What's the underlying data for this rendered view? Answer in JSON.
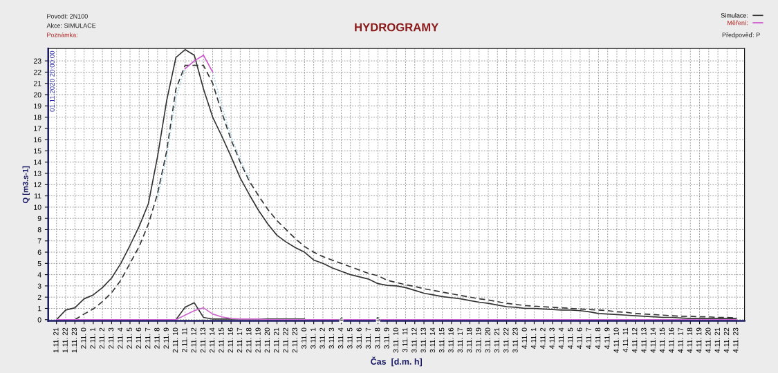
{
  "chart_data": {
    "type": "line",
    "title": "HYDROGRAMY",
    "xlabel": "Čas  [d.m. h]",
    "ylabel": "Q [m3.s-1]",
    "categories": [
      "1.11. 21",
      "1.11. 22",
      "1.11. 23",
      "2.11. 0",
      "2.11. 1",
      "2.11. 2",
      "2.11. 3",
      "2.11. 4",
      "2.11. 5",
      "2.11. 6",
      "2.11. 7",
      "2.11. 8",
      "2.11. 9",
      "2.11. 10",
      "2.11. 11",
      "2.11. 12",
      "2.11. 13",
      "2.11. 14",
      "2.11. 15",
      "2.11. 16",
      "2.11. 17",
      "2.11. 18",
      "2.11. 19",
      "2.11. 20",
      "2.11. 21",
      "2.11. 22",
      "2.11. 23",
      "3.11. 0",
      "3.11. 1",
      "3.11. 2",
      "3.11. 3",
      "3.11. 4",
      "3.11. 5",
      "3.11. 6",
      "3.11. 7",
      "3.11. 8",
      "3.11. 9",
      "3.11. 10",
      "3.11. 11",
      "3.11. 12",
      "3.11. 13",
      "3.11. 14",
      "3.11. 15",
      "3.11. 16",
      "3.11. 17",
      "3.11. 18",
      "3.11. 19",
      "3.11. 20",
      "3.11. 21",
      "3.11. 22",
      "3.11. 23",
      "4.11. 0",
      "4.11. 1",
      "4.11. 2",
      "4.11. 3",
      "4.11. 4",
      "4.11. 5",
      "4.11. 6",
      "4.11. 7",
      "4.11. 8",
      "4.11. 9",
      "4.11. 10",
      "4.11. 11",
      "4.11. 12",
      "4.11. 13",
      "4.11. 14",
      "4.11. 15",
      "4.11. 16",
      "4.11. 17",
      "4.11. 18",
      "4.11. 19",
      "4.11. 20",
      "4.11. 21",
      "4.11. 22",
      "4.11. 23"
    ],
    "series": [
      {
        "name": "Simulace:",
        "color": "#333333",
        "line_style": "solid",
        "values": [
          0,
          0.85,
          1.05,
          1.85,
          2.2,
          2.85,
          3.7,
          5.0,
          6.6,
          8.3,
          10.3,
          14.5,
          19.5,
          23.3,
          24.0,
          23.5,
          20.5,
          18.0,
          16.3,
          14.5,
          12.6,
          11.1,
          9.7,
          8.5,
          7.5,
          6.9,
          6.4,
          6.0,
          5.3,
          5.0,
          4.6,
          4.3,
          4.0,
          3.8,
          3.6,
          3.2,
          3.05,
          3.0,
          2.85,
          2.6,
          2.35,
          2.2,
          2.05,
          1.95,
          1.85,
          1.7,
          1.55,
          1.45,
          1.3,
          1.15,
          1.1,
          1.0,
          1.0,
          0.95,
          0.9,
          0.85,
          0.85,
          0.8,
          0.7,
          0.55,
          0.5,
          0.45,
          0.4,
          0.35,
          0.3,
          0.25,
          0.2,
          0.2,
          0.15,
          0.1,
          0.1,
          0.1,
          0.1,
          0.1,
          0.1
        ]
      },
      {
        "color": "#333333",
        "line_style": "dashed",
        "values": [
          null,
          null,
          0,
          0.5,
          0.95,
          1.6,
          2.4,
          3.5,
          5.0,
          6.5,
          8.5,
          11.2,
          15.0,
          20.5,
          22.6,
          22.6,
          22.6,
          21.0,
          18.4,
          16.0,
          14.0,
          12.3,
          11.0,
          9.8,
          8.8,
          8.0,
          7.2,
          6.5,
          6.0,
          5.6,
          5.3,
          5.0,
          4.7,
          4.4,
          4.1,
          3.9,
          3.5,
          3.3,
          3.1,
          2.95,
          2.75,
          2.6,
          2.45,
          2.3,
          2.15,
          2.0,
          1.85,
          1.75,
          1.6,
          1.45,
          1.35,
          1.25,
          1.2,
          1.15,
          1.1,
          1.05,
          1.0,
          0.95,
          0.9,
          0.85,
          0.8,
          0.7,
          0.65,
          0.55,
          0.5,
          0.45,
          0.4,
          0.35,
          0.3,
          0.3,
          0.25,
          0.25,
          0.2,
          0.2,
          0.15
        ]
      },
      {
        "color": "#9fd3e6",
        "line_style": "dotted",
        "values": [
          null,
          null,
          null,
          null,
          null,
          null,
          null,
          null,
          null,
          null,
          null,
          10.8,
          14.5,
          19.8,
          22.3,
          null,
          null,
          22.0,
          19.0,
          16.3,
          14.2,
          12.5,
          null,
          null,
          null,
          null,
          null,
          null,
          null,
          null,
          null,
          null,
          null,
          null,
          null,
          null,
          null,
          null,
          null,
          null,
          null,
          null,
          null,
          null,
          null,
          null,
          null,
          null,
          null,
          null,
          null,
          null,
          null,
          null,
          null,
          null,
          null,
          null,
          null,
          null,
          null,
          null,
          null,
          null,
          null,
          null,
          null,
          null,
          null,
          null,
          null,
          null,
          null,
          null,
          null
        ]
      },
      {
        "name": "Měření:",
        "color": "#cc55cc",
        "line_style": "solid",
        "values": [
          null,
          null,
          null,
          null,
          null,
          null,
          null,
          null,
          null,
          null,
          null,
          null,
          null,
          null,
          22.3,
          23.0,
          23.5,
          22.0,
          null,
          null,
          null,
          null,
          null,
          null,
          null,
          null,
          null,
          null,
          null,
          null,
          null,
          null,
          null,
          null,
          null,
          null,
          null,
          null,
          null,
          null,
          null,
          null,
          null,
          null,
          null,
          null,
          null,
          null,
          null,
          null,
          null,
          null,
          null,
          null,
          null,
          null,
          null,
          null,
          null,
          null,
          null,
          null,
          null,
          null,
          null,
          null,
          null,
          null,
          null,
          null,
          null,
          null,
          null,
          null,
          null
        ]
      },
      {
        "color": "#333333",
        "line_style": "solid",
        "values": [
          null,
          null,
          null,
          null,
          null,
          null,
          null,
          null,
          null,
          null,
          null,
          null,
          null,
          0,
          1.1,
          1.5,
          0.2,
          0.05,
          0.05,
          0.05,
          0.05,
          0.05,
          0.05,
          0.05,
          0.05,
          0.05,
          0.05,
          0.05,
          null,
          null,
          null,
          null,
          null,
          null,
          null,
          null,
          null,
          null,
          null,
          null,
          null,
          null,
          null,
          null,
          null,
          null,
          null,
          null,
          null,
          null,
          null,
          null,
          null,
          null,
          null,
          null,
          null,
          null,
          null,
          null,
          null,
          null,
          null,
          null,
          null,
          null,
          null,
          null,
          null,
          null,
          null,
          null,
          null,
          null,
          null
        ]
      },
      {
        "color": "#cc66cc",
        "line_style": "solid",
        "values": [
          0,
          0,
          0,
          0,
          0,
          0,
          0,
          0,
          0,
          0,
          0,
          0,
          0,
          0,
          0.4,
          0.8,
          1.05,
          0.5,
          0.25,
          0.1,
          0.05,
          0.05,
          0.05,
          0,
          0,
          0,
          0,
          0,
          0,
          0,
          0,
          0,
          0,
          0,
          0,
          0,
          0,
          0,
          0,
          0,
          0,
          0,
          0,
          0,
          0,
          0,
          0,
          0,
          0,
          0,
          0,
          0,
          0,
          0,
          0,
          0,
          0,
          0,
          0,
          0,
          0,
          0,
          0,
          0,
          0,
          0,
          0,
          0,
          0,
          0,
          0,
          0,
          0,
          0,
          0
        ]
      }
    ],
    "ylim": [
      -0.1,
      24.1
    ],
    "yticks": [
      0,
      1,
      2,
      3,
      4,
      5,
      6,
      7,
      8,
      9,
      10,
      11,
      12,
      13,
      14,
      15,
      16,
      17,
      18,
      19,
      20,
      21,
      22,
      23
    ],
    "grid": true,
    "legend": "top right",
    "marker": "none",
    "annotations": [
      "Povodí: 2N100",
      "Akce: SIMULACE",
      "Poznámka:",
      "Předpověď: P",
      "01.11.2020 20:00:00",
      {
        "text": "4",
        "x": "3.11. 4",
        "y": 0
      },
      {
        "text": "5",
        "x": "3.11. 8",
        "y": 0
      }
    ]
  }
}
